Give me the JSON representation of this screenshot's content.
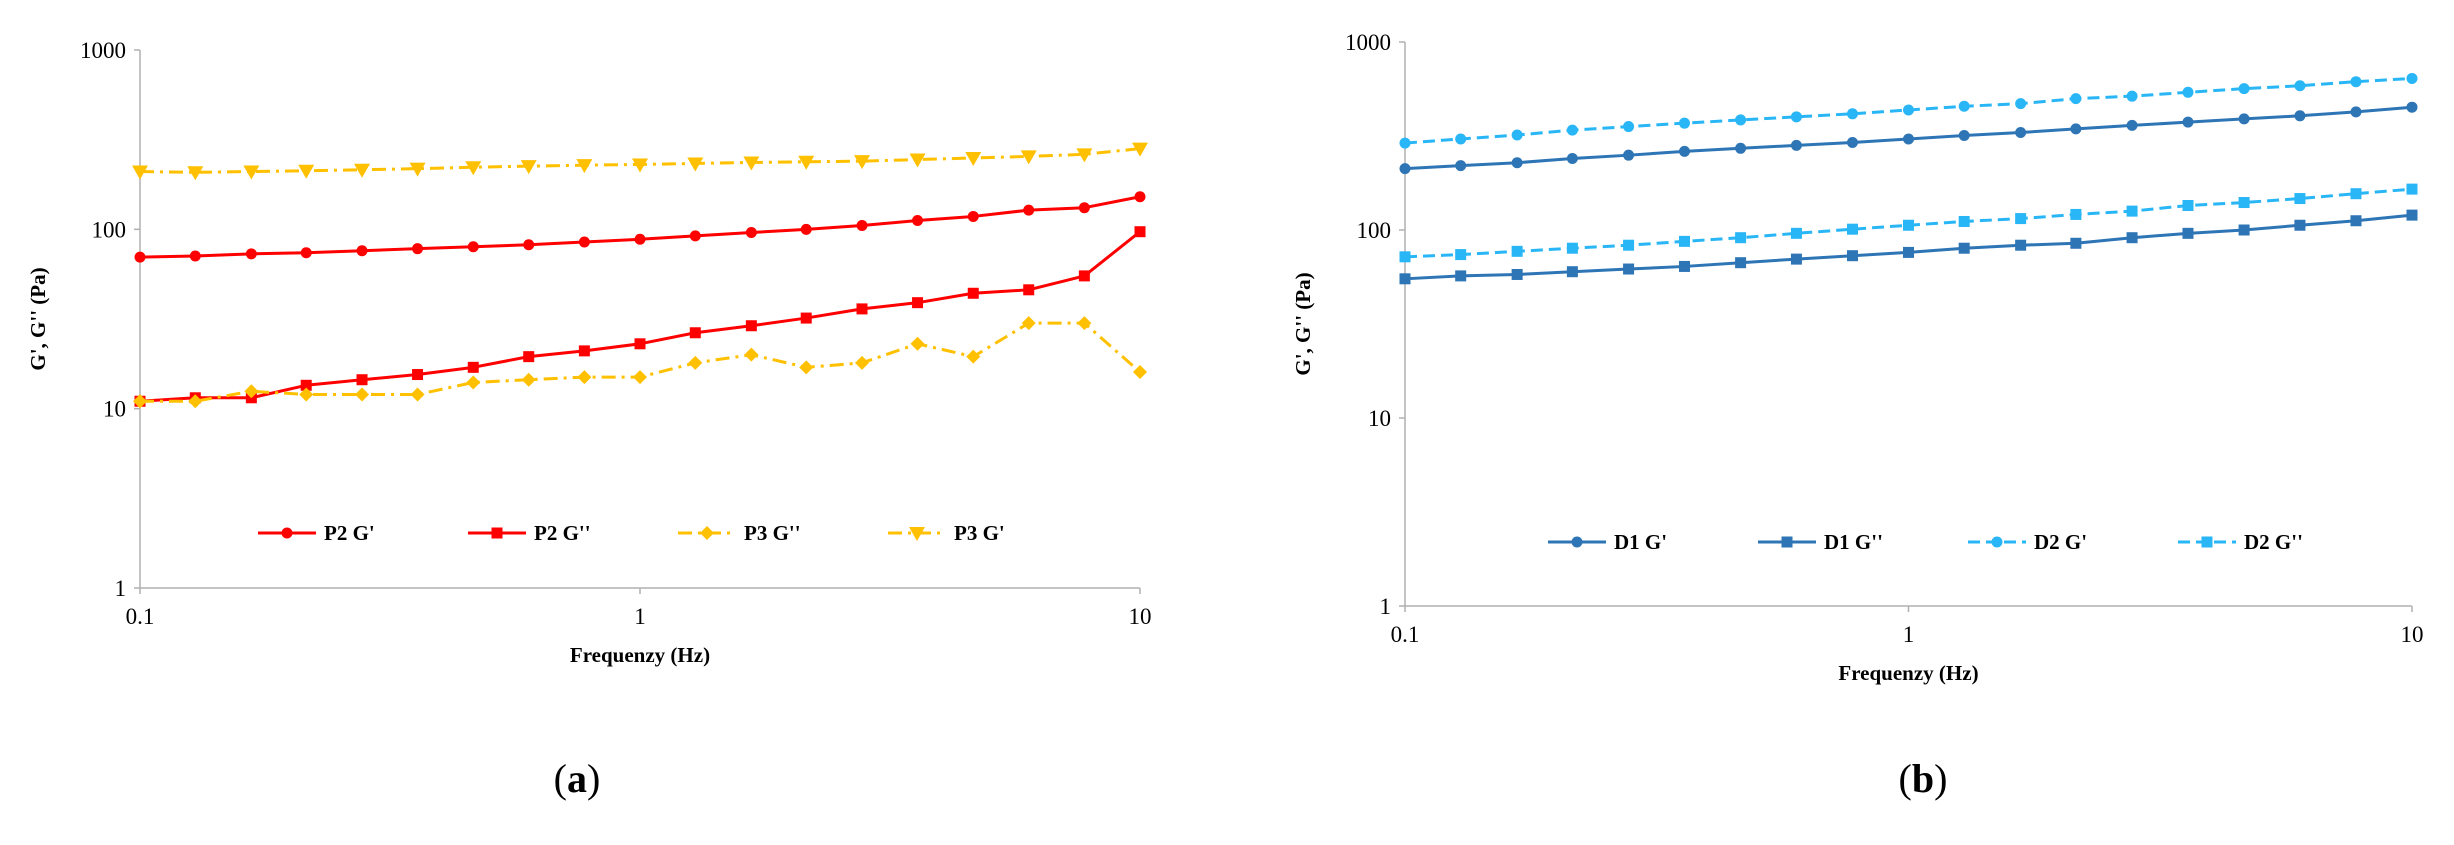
{
  "colors": {
    "P2": "#ff0000",
    "P3": "#ffc000",
    "D1": "#2e75b6",
    "D2": "#29b6f6"
  },
  "chart_data": [
    {
      "type": "line",
      "panel_label": "a",
      "xlabel": "Frequenzy (Hz)",
      "ylabel": "G', G'' (Pa)",
      "xscale": "log",
      "yscale": "log",
      "xlim": [
        0.1,
        10
      ],
      "ylim": [
        1,
        1000
      ],
      "x_ticks": [
        "0.1",
        "1",
        "10"
      ],
      "y_ticks": [
        "1",
        "10",
        "100",
        "1000"
      ],
      "grid": false,
      "legend_position": "lower-center",
      "x": [
        0.1,
        0.129,
        0.167,
        0.215,
        0.278,
        0.359,
        0.464,
        0.599,
        0.774,
        1.0,
        1.29,
        1.67,
        2.15,
        2.78,
        3.59,
        4.64,
        5.99,
        7.74,
        10.0
      ],
      "series": [
        {
          "name": "P2 G'",
          "color": "#ff0000",
          "dash": "solid",
          "marker": "circle",
          "values": [
            70,
            71,
            73,
            74,
            76,
            78,
            80,
            82,
            85,
            88,
            92,
            96,
            100,
            105,
            112,
            118,
            128,
            132,
            152
          ]
        },
        {
          "name": "P2 G''",
          "color": "#ff0000",
          "dash": "solid",
          "marker": "square",
          "values": [
            11,
            11.5,
            11.5,
            13.5,
            14.5,
            15.5,
            17,
            19.5,
            21,
            23,
            26.5,
            29,
            32,
            36,
            39,
            44,
            46,
            55,
            97
          ]
        },
        {
          "name": "P3 G''",
          "color": "#ffc000",
          "dash": "dashdot",
          "marker": "diamond",
          "values": [
            11,
            11,
            12.5,
            12,
            12,
            12,
            14,
            14.5,
            15,
            15,
            18,
            20,
            17,
            18,
            23,
            19.5,
            30,
            30,
            16
          ]
        },
        {
          "name": "P3 G'",
          "color": "#ffc000",
          "dash": "dashdot",
          "marker": "triangle-down",
          "values": [
            210,
            208,
            210,
            212,
            215,
            218,
            222,
            225,
            228,
            230,
            233,
            236,
            238,
            240,
            245,
            250,
            255,
            262,
            282
          ]
        }
      ]
    },
    {
      "type": "line",
      "panel_label": "b",
      "xlabel": "Frequenzy (Hz)",
      "ylabel": "G', G'' (Pa)",
      "xscale": "log",
      "yscale": "log",
      "xlim": [
        0.1,
        10
      ],
      "ylim": [
        1,
        1000
      ],
      "x_ticks": [
        "0.1",
        "1",
        "10"
      ],
      "y_ticks": [
        "1",
        "10",
        "100",
        "1000"
      ],
      "grid": false,
      "legend_position": "lower-center",
      "x": [
        0.1,
        0.129,
        0.167,
        0.215,
        0.278,
        0.359,
        0.464,
        0.599,
        0.774,
        1.0,
        1.29,
        1.67,
        2.15,
        2.78,
        3.59,
        4.64,
        5.99,
        7.74,
        10.0
      ],
      "series": [
        {
          "name": "D1 G'",
          "color": "#2e75b6",
          "dash": "solid",
          "marker": "circle",
          "values": [
            212,
            220,
            228,
            240,
            250,
            262,
            272,
            282,
            292,
            305,
            318,
            330,
            345,
            360,
            375,
            390,
            405,
            425,
            450
          ]
        },
        {
          "name": "D1 G''",
          "color": "#2e75b6",
          "dash": "solid",
          "marker": "square",
          "values": [
            55,
            57,
            58,
            60,
            62,
            64,
            67,
            70,
            73,
            76,
            80,
            83,
            85,
            91,
            96,
            100,
            106,
            112,
            120
          ]
        },
        {
          "name": "D2 G'",
          "color": "#29b6f6",
          "dash": "dashed",
          "marker": "circle",
          "values": [
            290,
            305,
            320,
            340,
            355,
            370,
            385,
            400,
            415,
            435,
            455,
            470,
            500,
            515,
            540,
            565,
            585,
            615,
            640
          ]
        },
        {
          "name": "D2 G''",
          "color": "#29b6f6",
          "dash": "dashed",
          "marker": "square",
          "values": [
            72,
            74,
            77,
            80,
            83,
            87,
            91,
            96,
            101,
            106,
            111,
            115,
            121,
            126,
            135,
            140,
            147,
            156,
            165
          ]
        }
      ]
    }
  ]
}
